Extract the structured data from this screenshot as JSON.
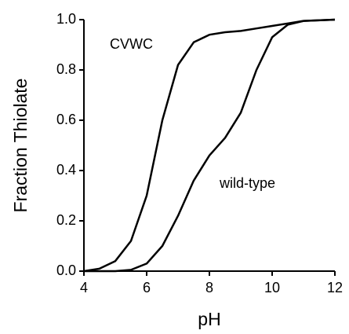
{
  "chart_data": {
    "type": "line",
    "x_label": "pH",
    "y_label": "Fraction Thiolate",
    "x": [
      4,
      4.5,
      5,
      5.5,
      6,
      6.5,
      7,
      7.5,
      8,
      8.5,
      9,
      9.5,
      10,
      10.5,
      11,
      12
    ],
    "series": [
      {
        "name": "CVWC",
        "color": "#000000",
        "values": [
          0.0,
          0.01,
          0.04,
          0.12,
          0.3,
          0.6,
          0.82,
          0.91,
          0.94,
          0.95,
          0.955,
          0.965,
          0.975,
          0.985,
          0.995,
          1.0
        ]
      },
      {
        "name": "wild-type",
        "color": "#000000",
        "values": [
          0.0,
          0.0,
          0.0,
          0.005,
          0.03,
          0.1,
          0.22,
          0.36,
          0.46,
          0.53,
          0.63,
          0.8,
          0.93,
          0.98,
          0.995,
          1.0
        ]
      }
    ],
    "xlim": [
      4,
      12
    ],
    "xticks": [
      4,
      6,
      8,
      10,
      12
    ],
    "ylim": [
      0,
      1
    ],
    "yticks": [
      {
        "value": 0,
        "label": "0.0"
      },
      0.2,
      0.4,
      0.6,
      0.8,
      {
        "value": 1,
        "label": "1.0"
      }
    ],
    "grid": false
  }
}
